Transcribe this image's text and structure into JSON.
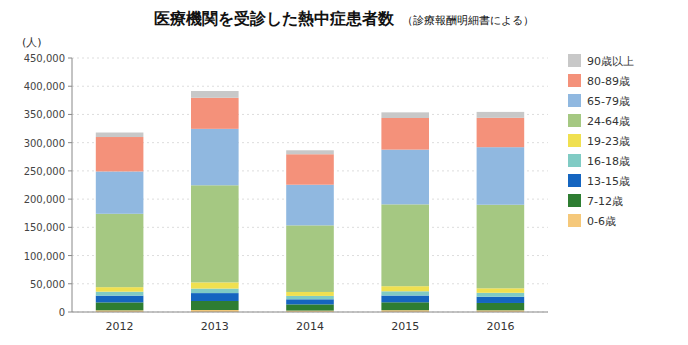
{
  "chart_data": {
    "type": "bar",
    "stacked": true,
    "title": "医療機関を受診した熱中症患者数",
    "subtitle": "（診療報酬明細書による）",
    "ylabel": "(人)",
    "categories": [
      "2012",
      "2013",
      "2014",
      "2015",
      "2016"
    ],
    "series": [
      {
        "name": "0-6歳",
        "color": "#f5c87a",
        "values": [
          3000,
          3500,
          2500,
          3200,
          3000
        ]
      },
      {
        "name": "7-12歳",
        "color": "#2e7d32",
        "values": [
          14000,
          16000,
          11000,
          14000,
          13000
        ]
      },
      {
        "name": "13-15歳",
        "color": "#1565c0",
        "values": [
          12000,
          14000,
          9000,
          12000,
          11000
        ]
      },
      {
        "name": "16-18歳",
        "color": "#80cbc4",
        "values": [
          7000,
          8000,
          6000,
          7500,
          7000
        ]
      },
      {
        "name": "19-23歳",
        "color": "#f0e050",
        "values": [
          8000,
          11000,
          7000,
          9000,
          8000
        ]
      },
      {
        "name": "24-64歳",
        "color": "#a5c882",
        "values": [
          130000,
          172000,
          118000,
          145000,
          148000
        ]
      },
      {
        "name": "65-79歳",
        "color": "#90b8e0",
        "values": [
          75000,
          100000,
          72000,
          97000,
          102000
        ]
      },
      {
        "name": "80-89歳",
        "color": "#f4917a",
        "values": [
          61000,
          55000,
          54000,
          56000,
          52000
        ]
      },
      {
        "name": "90歳以上",
        "color": "#c8c8c8",
        "values": [
          8000,
          12000,
          7000,
          10000,
          10500
        ]
      }
    ],
    "ylim": [
      0,
      450000
    ],
    "yticks": [
      0,
      {
        "value": 50000,
        "label": "50,000"
      },
      {
        "value": 100000,
        "label": "100,000"
      },
      {
        "value": 150000,
        "label": "150,000"
      },
      {
        "value": 200000,
        "label": "200,000"
      },
      {
        "value": 250000,
        "label": "250,000"
      },
      {
        "value": 300000,
        "label": "300,000"
      },
      {
        "value": 350000,
        "label": "350,000"
      },
      {
        "value": 400000,
        "label": "400,000"
      },
      {
        "value": 450000,
        "label": "450,000"
      }
    ],
    "grid": true,
    "legend": "right"
  }
}
